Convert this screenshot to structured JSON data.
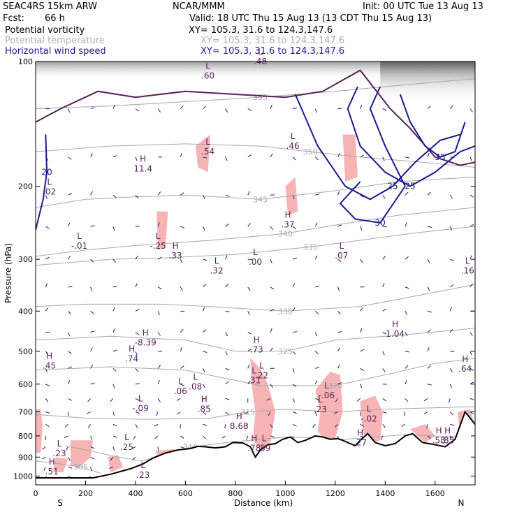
{
  "header": {
    "model": "SEAC4RS 15km ARW",
    "org": "NCAR/MMM",
    "init": "Init: 00 UTC Tue 13 Aug 13",
    "fcst_label": "Fcst:",
    "fcst_value": "66 h",
    "valid": "Valid: 18 UTC Thu 15 Aug 13 (13 CDT Thu 15 Aug 13)",
    "fields": [
      {
        "name": "Potential vorticity",
        "xy": "XY= 105.3, 31.6 to 124.3,147.6",
        "color": "#000000"
      },
      {
        "name": "Potential temperature",
        "xy": "XY= 105.3, 31.6 to 124.3,147.6",
        "color": "#b0b0b0"
      },
      {
        "name": "Horizontal wind speed",
        "xy": "XY= 105.3, 31.6 to 124.3,147.6",
        "color": "#1a1a8c"
      }
    ]
  },
  "chart_data": {
    "type": "cross-section",
    "xlabel": "Distance (km)",
    "ylabel": "Pressure (hPa)",
    "xlim": [
      0,
      1760
    ],
    "ylim": [
      1050,
      100
    ],
    "y_log_scale": true,
    "x_ticks": [
      0,
      200,
      400,
      600,
      800,
      1000,
      1200,
      1400,
      1600
    ],
    "y_ticks": [
      100,
      200,
      300,
      400,
      500,
      600,
      700,
      800,
      900,
      1000
    ],
    "end_labels": {
      "left": "S",
      "right": "N"
    },
    "colors": {
      "pv_high": "#f7b4b4",
      "theta": "#a8a8a8",
      "wind": "#1a1a8c",
      "pv_label": "#5a1f5a",
      "terrain": "#000000"
    },
    "terrain": [
      [
        0,
        1010
      ],
      [
        230,
        1010
      ],
      [
        300,
        990
      ],
      [
        380,
        960
      ],
      [
        430,
        935
      ],
      [
        470,
        905
      ],
      [
        520,
        880
      ],
      [
        570,
        865
      ],
      [
        620,
        858
      ],
      [
        650,
        848
      ],
      [
        680,
        850
      ],
      [
        720,
        855
      ],
      [
        760,
        850
      ],
      [
        790,
        830
      ],
      [
        830,
        832
      ],
      [
        860,
        850
      ],
      [
        880,
        900
      ],
      [
        900,
        865
      ],
      [
        930,
        840
      ],
      [
        960,
        835
      ],
      [
        990,
        815
      ],
      [
        1020,
        805
      ],
      [
        1050,
        830
      ],
      [
        1080,
        820
      ],
      [
        1120,
        800
      ],
      [
        1150,
        805
      ],
      [
        1180,
        815
      ],
      [
        1210,
        812
      ],
      [
        1230,
        820
      ],
      [
        1260,
        835
      ],
      [
        1280,
        845
      ],
      [
        1300,
        820
      ],
      [
        1330,
        790
      ],
      [
        1360,
        830
      ],
      [
        1400,
        845
      ],
      [
        1440,
        835
      ],
      [
        1480,
        800
      ],
      [
        1510,
        790
      ],
      [
        1550,
        830
      ],
      [
        1600,
        840
      ],
      [
        1640,
        850
      ],
      [
        1680,
        815
      ],
      [
        1720,
        700
      ],
      [
        1760,
        750
      ]
    ],
    "theta_contours": [
      {
        "label": "355",
        "points": [
          [
            0,
            130
          ],
          [
            300,
            128
          ],
          [
            600,
            125
          ],
          [
            900,
            122
          ],
          [
            1200,
            118
          ],
          [
            1400,
            115
          ],
          [
            1760,
            110
          ]
        ]
      },
      {
        "label": "350",
        "points": [
          [
            0,
            165
          ],
          [
            300,
            160
          ],
          [
            600,
            158
          ],
          [
            900,
            160
          ],
          [
            1100,
            165
          ],
          [
            1300,
            170
          ],
          [
            1550,
            175
          ],
          [
            1760,
            180
          ]
        ]
      },
      {
        "label": "345",
        "points": [
          [
            0,
            225
          ],
          [
            200,
            215
          ],
          [
            400,
            212
          ],
          [
            600,
            210
          ],
          [
            900,
            215
          ],
          [
            1200,
            205
          ],
          [
            1450,
            195
          ],
          [
            1760,
            190
          ]
        ]
      },
      {
        "label": "340",
        "points": [
          [
            0,
            295
          ],
          [
            200,
            285
          ],
          [
            400,
            278
          ],
          [
            700,
            270
          ],
          [
            1000,
            260
          ],
          [
            1200,
            248
          ],
          [
            1450,
            235
          ],
          [
            1760,
            225
          ]
        ]
      },
      {
        "label": "335",
        "points": [
          [
            0,
            310
          ],
          [
            300,
            300
          ],
          [
            500,
            298
          ],
          [
            800,
            292
          ],
          [
            1100,
            280
          ],
          [
            1300,
            270
          ],
          [
            1500,
            260
          ],
          [
            1760,
            250
          ]
        ]
      },
      {
        "label": "330",
        "points": [
          [
            0,
            390
          ],
          [
            200,
            385
          ],
          [
            500,
            385
          ],
          [
            700,
            390
          ],
          [
            1000,
            400
          ],
          [
            1300,
            390
          ],
          [
            1550,
            365
          ],
          [
            1760,
            345
          ]
        ]
      },
      {
        "label": "325",
        "points": [
          [
            0,
            470
          ],
          [
            300,
            460
          ],
          [
            600,
            470
          ],
          [
            800,
            500
          ],
          [
            1000,
            500
          ],
          [
            1200,
            470
          ],
          [
            1500,
            455
          ],
          [
            1760,
            440
          ]
        ]
      },
      {
        "label": "320",
        "points": [
          [
            0,
            555
          ],
          [
            300,
            545
          ],
          [
            600,
            555
          ],
          [
            900,
            605
          ],
          [
            1200,
            605
          ],
          [
            1400,
            570
          ],
          [
            1600,
            535
          ],
          [
            1760,
            520
          ]
        ]
      },
      {
        "label": "315",
        "points": [
          [
            0,
            710
          ],
          [
            200,
            725
          ],
          [
            450,
            730
          ],
          [
            700,
            725
          ],
          [
            850,
            700
          ],
          [
            1000,
            690
          ],
          [
            1200,
            700
          ],
          [
            1400,
            690
          ],
          [
            1760,
            680
          ]
        ]
      },
      {
        "label": "310",
        "points": [
          [
            120,
            845
          ],
          [
            220,
            870
          ],
          [
            330,
            900
          ],
          [
            430,
            920
          ],
          [
            520,
            880
          ],
          [
            620,
            852
          ],
          [
            780,
            828
          ],
          [
            1000,
            805
          ],
          [
            1240,
            815
          ],
          [
            1480,
            795
          ],
          [
            1700,
            805
          ]
        ]
      },
      {
        "label": "305",
        "points": [
          [
            0,
            920
          ],
          [
            100,
            935
          ],
          [
            180,
            950
          ],
          [
            260,
            985
          ]
        ]
      }
    ],
    "wind_contours": [
      {
        "label": "20",
        "points": [
          [
            0,
            255
          ],
          [
            30,
            215
          ],
          [
            45,
            185
          ],
          [
            40,
            150
          ]
        ]
      },
      {
        "label": "25",
        "points": [
          [
            1040,
            120
          ],
          [
            1130,
            160
          ],
          [
            1240,
            200
          ],
          [
            1340,
            215
          ],
          [
            1430,
            200
          ],
          [
            1520,
            175
          ],
          [
            1620,
            155
          ],
          [
            1700,
            150
          ]
        ]
      },
      {
        "label": "25",
        "points": [
          [
            1290,
            115
          ],
          [
            1250,
            130
          ],
          [
            1300,
            160
          ],
          [
            1400,
            185
          ],
          [
            1500,
            200
          ],
          [
            1600,
            185
          ],
          [
            1700,
            165
          ],
          [
            1760,
            160
          ]
        ]
      },
      {
        "label": "30",
        "points": [
          [
            1380,
            115
          ],
          [
            1340,
            130
          ],
          [
            1400,
            160
          ],
          [
            1480,
            200
          ],
          [
            1380,
            245
          ],
          [
            1280,
            240
          ],
          [
            1220,
            220
          ],
          [
            1300,
            195
          ]
        ]
      },
      {
        "label": "35",
        "points": [
          [
            1460,
            120
          ],
          [
            1500,
            140
          ],
          [
            1560,
            160
          ],
          [
            1620,
            170
          ],
          [
            1680,
            165
          ],
          [
            1720,
            140
          ]
        ]
      }
    ],
    "extrema": [
      {
        "type": "H",
        "value": "11.4",
        "x": 430,
        "p": 176
      },
      {
        "type": "L",
        "value": ".60",
        "x": 690,
        "p": 105
      },
      {
        "type": "L",
        "value": ".48",
        "x": 900,
        "p": 97
      },
      {
        "type": "L",
        "value": ".54",
        "x": 690,
        "p": 160
      },
      {
        "type": "L",
        "value": ".46",
        "x": 1030,
        "p": 155
      },
      {
        "type": "L",
        "value": ".02",
        "x": 55,
        "p": 200
      },
      {
        "type": "H",
        "value": ".37",
        "x": 1010,
        "p": 240
      },
      {
        "type": "L",
        "value": "-.01",
        "x": 175,
        "p": 270
      },
      {
        "type": "L",
        "value": "-.25",
        "x": 490,
        "p": 270
      },
      {
        "type": "H",
        "value": ".33",
        "x": 560,
        "p": 285
      },
      {
        "type": "L",
        "value": ".32",
        "x": 725,
        "p": 310
      },
      {
        "type": "L",
        "value": ".00",
        "x": 880,
        "p": 295
      },
      {
        "type": "L",
        "value": ".07",
        "x": 1225,
        "p": 285
      },
      {
        "type": "L",
        "value": ".16",
        "x": 1730,
        "p": 310
      },
      {
        "type": "H",
        "value": "1.04",
        "x": 1440,
        "p": 440
      },
      {
        "type": "H",
        "value": "-8.39",
        "x": 440,
        "p": 462
      },
      {
        "type": "H",
        "value": ".73",
        "x": 885,
        "p": 480
      },
      {
        "type": "H",
        "value": ".74",
        "x": 385,
        "p": 505
      },
      {
        "type": "H",
        "value": ".45",
        "x": 55,
        "p": 525
      },
      {
        "type": "H",
        "value": ".64",
        "x": 1720,
        "p": 535
      },
      {
        "type": "L",
        "value": ".31",
        "x": 875,
        "p": 570
      },
      {
        "type": "L",
        "value": ".22",
        "x": 905,
        "p": 555
      },
      {
        "type": "L",
        "value": ".08",
        "x": 640,
        "p": 590
      },
      {
        "type": "L",
        "value": ".06",
        "x": 580,
        "p": 605
      },
      {
        "type": "L",
        "value": "-.06",
        "x": 1165,
        "p": 620
      },
      {
        "type": "L",
        "value": "-.09",
        "x": 420,
        "p": 665
      },
      {
        "type": "H",
        "value": ".85",
        "x": 675,
        "p": 668
      },
      {
        "type": "L",
        "value": ".23",
        "x": 1140,
        "p": 670
      },
      {
        "type": "L",
        "value": "-.02",
        "x": 1335,
        "p": 705
      },
      {
        "type": "H",
        "value": "8.68",
        "x": 815,
        "p": 735
      },
      {
        "type": "H",
        "value": ".27",
        "x": 1300,
        "p": 805
      },
      {
        "type": "H",
        "value": ".58",
        "x": 1615,
        "p": 795
      },
      {
        "type": "H",
        "value": ".85",
        "x": 1650,
        "p": 795
      },
      {
        "type": "L",
        "value": ".25",
        "x": 365,
        "p": 825
      },
      {
        "type": "L",
        "value": ".23",
        "x": 95,
        "p": 855
      },
      {
        "type": "H",
        "value": ".78",
        "x": 875,
        "p": 830
      },
      {
        "type": "L",
        "value": ".59",
        "x": 915,
        "p": 830
      },
      {
        "type": "L",
        "value": ".23",
        "x": 430,
        "p": 965
      },
      {
        "type": "H",
        "value": ".51",
        "x": 65,
        "p": 945
      }
    ]
  }
}
